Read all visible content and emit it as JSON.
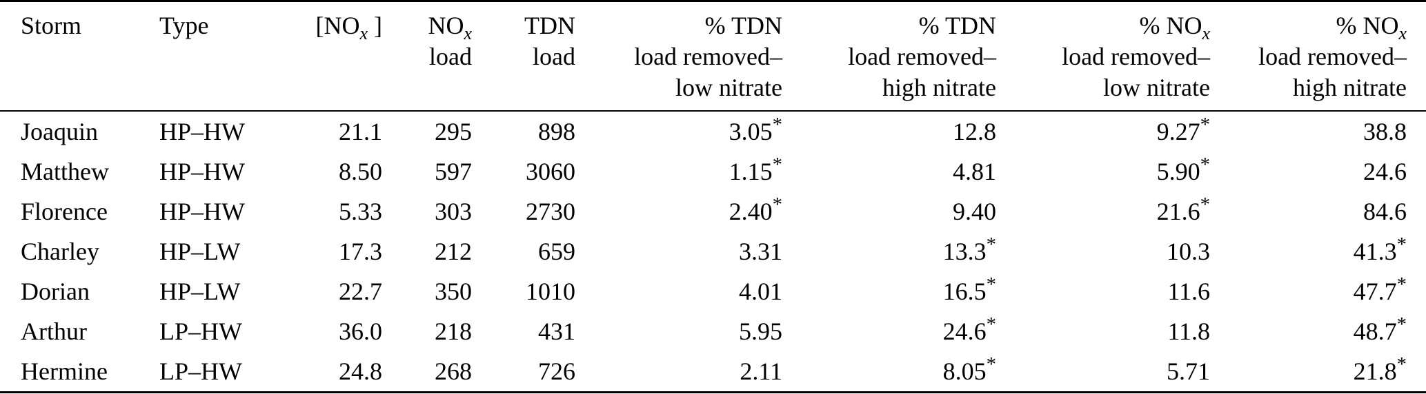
{
  "chart_data": {
    "type": "table",
    "columns": [
      {
        "id": "storm",
        "align": "left",
        "label_lines": [
          "Storm"
        ]
      },
      {
        "id": "type",
        "align": "left",
        "label_lines": [
          "Type"
        ]
      },
      {
        "id": "nox_conc",
        "align": "right",
        "label_lines": [
          "[NO~x~ ]"
        ]
      },
      {
        "id": "nox_load",
        "align": "right",
        "label_lines": [
          "NO~x~",
          "load"
        ]
      },
      {
        "id": "tdn_load",
        "align": "right",
        "label_lines": [
          "TDN",
          "load"
        ]
      },
      {
        "id": "pct_tdn_low",
        "align": "right",
        "label_lines": [
          "% TDN",
          "load removed–",
          "low nitrate"
        ]
      },
      {
        "id": "pct_tdn_high",
        "align": "right",
        "label_lines": [
          "% TDN",
          "load removed–",
          "high nitrate"
        ]
      },
      {
        "id": "pct_nox_low",
        "align": "right",
        "label_lines": [
          "% NO~x~",
          "load removed–",
          "low nitrate"
        ]
      },
      {
        "id": "pct_nox_high",
        "align": "right",
        "label_lines": [
          "% NO~x~",
          "load removed–",
          "high nitrate"
        ]
      }
    ],
    "rows": [
      [
        "Joaquin",
        "HP–HW",
        "21.1",
        "295",
        "898",
        "3.05*",
        "12.8",
        "9.27*",
        "38.8"
      ],
      [
        "Matthew",
        "HP–HW",
        "8.50",
        "597",
        "3060",
        "1.15*",
        "4.81",
        "5.90*",
        "24.6"
      ],
      [
        "Florence",
        "HP–HW",
        "5.33",
        "303",
        "2730",
        "2.40*",
        "9.40",
        "21.6*",
        "84.6"
      ],
      [
        "Charley",
        "HP–LW",
        "17.3",
        "212",
        "659",
        "3.31",
        "13.3*",
        "10.3",
        "41.3*"
      ],
      [
        "Dorian",
        "HP–LW",
        "22.7",
        "350",
        "1010",
        "4.01",
        "16.5*",
        "11.6",
        "47.7*"
      ],
      [
        "Arthur",
        "LP–HW",
        "36.0",
        "218",
        "431",
        "5.95",
        "24.6*",
        "11.8",
        "48.7*"
      ],
      [
        "Hermine",
        "LP–HW",
        "24.8",
        "268",
        "726",
        "2.11",
        "8.05*",
        "5.71",
        "21.8*"
      ]
    ]
  }
}
